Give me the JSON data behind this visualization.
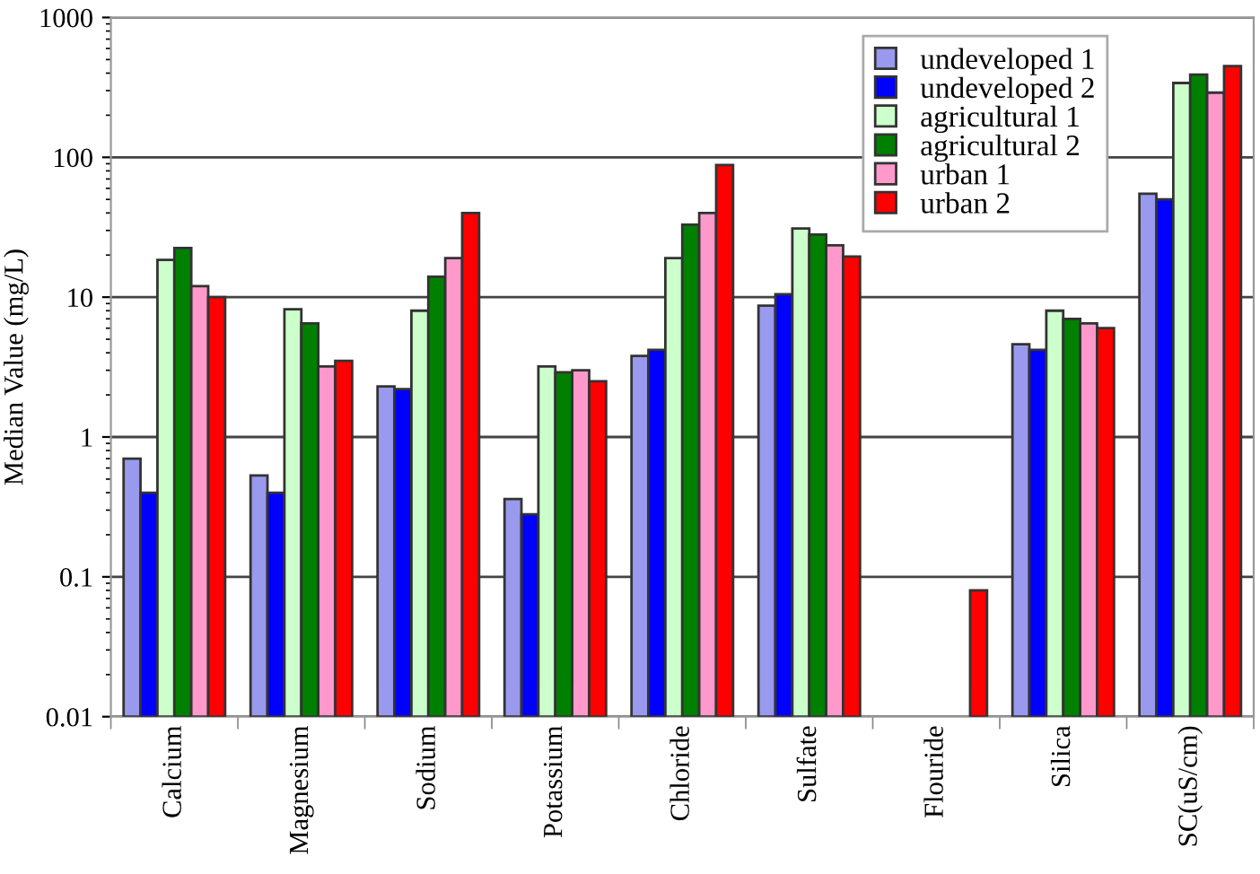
{
  "chart_data": {
    "type": "bar",
    "ylabel": "Median Value (mg/L)",
    "log": "y",
    "ylim": [
      0.01,
      1000
    ],
    "yticks": [
      0.01,
      0.1,
      1,
      10,
      100,
      1000
    ],
    "grid": "y",
    "legend": "top right",
    "categories": [
      "Calcium",
      "Magnesium",
      "Sodium",
      "Potassium",
      "Chloride",
      "Sulfate",
      "Flouride",
      "Silica",
      "SC(uS/cm)"
    ],
    "series": [
      {
        "name": "undeveloped 1",
        "color": "#9999ee",
        "values": [
          0.7,
          0.53,
          2.3,
          0.36,
          3.8,
          8.7,
          null,
          4.6,
          55
        ]
      },
      {
        "name": "undeveloped 2",
        "color": "#0000ff",
        "values": [
          0.4,
          0.4,
          2.2,
          0.28,
          4.2,
          10.5,
          null,
          4.2,
          50
        ]
      },
      {
        "name": "agricultural 1",
        "color": "#ccffcc",
        "values": [
          18.5,
          8.2,
          8,
          3.2,
          19,
          31,
          null,
          8,
          340
        ]
      },
      {
        "name": "agricultural 2",
        "color": "#008000",
        "values": [
          22.5,
          6.5,
          14,
          2.9,
          33,
          28,
          null,
          7,
          390
        ]
      },
      {
        "name": "urban 1",
        "color": "#ff99cc",
        "values": [
          12,
          3.2,
          19,
          3,
          40,
          23.5,
          null,
          6.5,
          290
        ]
      },
      {
        "name": "urban 2",
        "color": "#ff0000",
        "values": [
          10,
          3.5,
          40,
          2.5,
          88,
          19.5,
          0.08,
          6,
          450
        ]
      }
    ]
  }
}
